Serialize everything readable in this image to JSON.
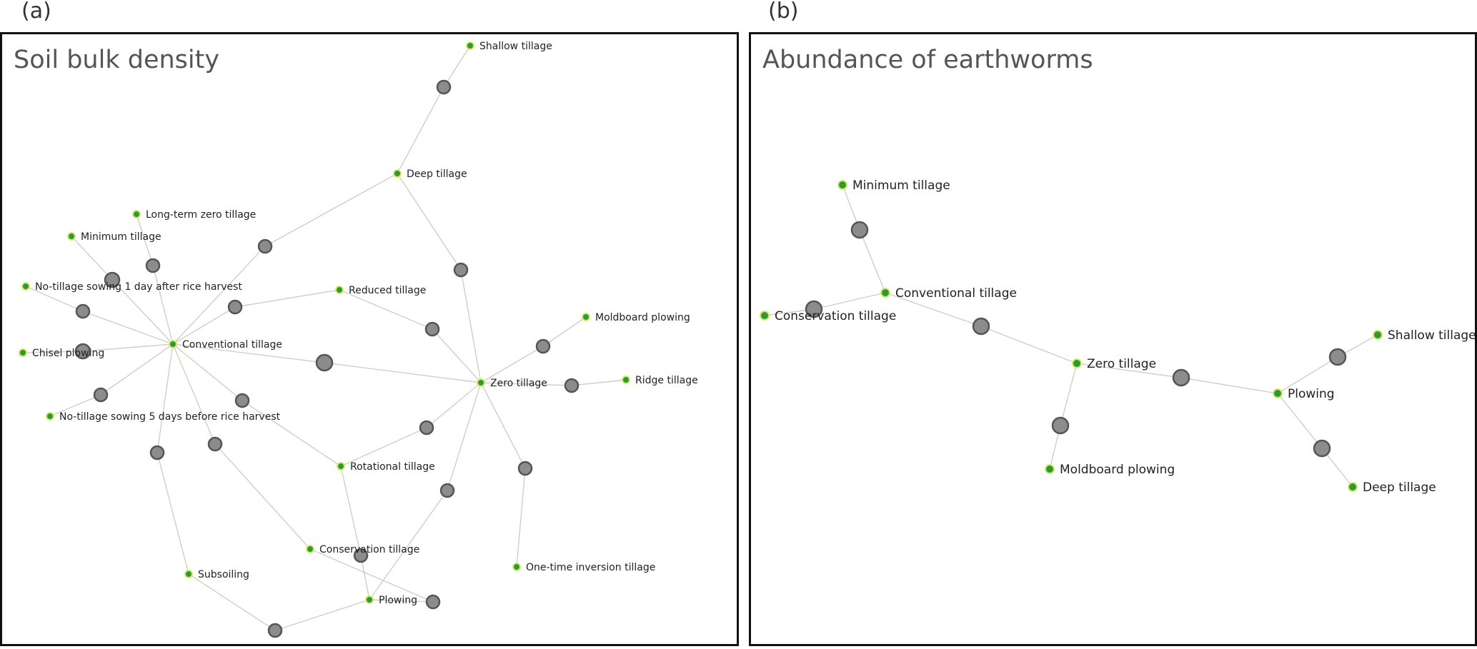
{
  "colors": {
    "edge": "#d0cfc6",
    "treatment_fill": "#2e9a35",
    "treatment_ring": "#d7e86a",
    "comparison_fill": "#8c8c8c",
    "comparison_stroke": "#555555"
  },
  "panels": [
    {
      "letter": "(a)",
      "title": "Soil bulk density",
      "nodes": [
        {
          "id": "shallow",
          "label": "Shallow tillage"
        },
        {
          "id": "deep",
          "label": "Deep tillage"
        },
        {
          "id": "longterm",
          "label": "Long-term zero tillage"
        },
        {
          "id": "minimum",
          "label": "Minimum tillage"
        },
        {
          "id": "nts1",
          "label": "No-tillage sowing 1 day after rice harvest"
        },
        {
          "id": "reduced",
          "label": "Reduced tillage"
        },
        {
          "id": "moldboard",
          "label": "Moldboard plowing"
        },
        {
          "id": "conventional",
          "label": "Conventional tillage"
        },
        {
          "id": "chisel",
          "label": "Chisel plowing"
        },
        {
          "id": "zero",
          "label": "Zero tillage"
        },
        {
          "id": "ridge",
          "label": "Ridge tillage"
        },
        {
          "id": "nts5",
          "label": "No-tillage sowing 5 days before rice harvest"
        },
        {
          "id": "rotational",
          "label": "Rotational tillage"
        },
        {
          "id": "conservation",
          "label": "Conservation tillage"
        },
        {
          "id": "onetime",
          "label": "One-time inversion tillage"
        },
        {
          "id": "subsoiling",
          "label": "Subsoiling"
        },
        {
          "id": "plowing",
          "label": "Plowing"
        }
      ],
      "comparisons": [
        [
          "shallow",
          "deep"
        ],
        [
          "deep",
          "conventional"
        ],
        [
          "deep",
          "zero"
        ],
        [
          "longterm",
          "conventional"
        ],
        [
          "minimum",
          "conventional"
        ],
        [
          "nts1",
          "conventional"
        ],
        [
          "reduced",
          "conventional"
        ],
        [
          "reduced",
          "zero"
        ],
        [
          "moldboard",
          "zero"
        ],
        [
          "chisel",
          "conventional"
        ],
        [
          "conventional",
          "zero"
        ],
        [
          "zero",
          "ridge"
        ],
        [
          "nts5",
          "conventional"
        ],
        [
          "conventional",
          "rotational"
        ],
        [
          "rotational",
          "zero"
        ],
        [
          "conventional",
          "conservation"
        ],
        [
          "conventional",
          "subsoiling"
        ],
        [
          "zero",
          "plowing"
        ],
        [
          "zero",
          "onetime"
        ],
        [
          "rotational",
          "plowing"
        ],
        [
          "subsoiling",
          "plowing"
        ],
        [
          "conservation",
          "plowing"
        ]
      ]
    },
    {
      "letter": "(b)",
      "title": "Abundance of earthworms",
      "nodes": [
        {
          "id": "minimum",
          "label": "Minimum tillage"
        },
        {
          "id": "conventional",
          "label": "Conventional tillage"
        },
        {
          "id": "conservation",
          "label": "Conservation tillage"
        },
        {
          "id": "zero",
          "label": "Zero tillage"
        },
        {
          "id": "moldboard",
          "label": "Moldboard plowing"
        },
        {
          "id": "plowing",
          "label": "Plowing"
        },
        {
          "id": "shallow",
          "label": "Shallow tillage"
        },
        {
          "id": "deep",
          "label": "Deep tillage"
        }
      ],
      "comparisons": [
        [
          "minimum",
          "conventional"
        ],
        [
          "conventional",
          "conservation"
        ],
        [
          "conventional",
          "zero"
        ],
        [
          "zero",
          "moldboard"
        ],
        [
          "zero",
          "plowing"
        ],
        [
          "plowing",
          "shallow"
        ],
        [
          "plowing",
          "deep"
        ]
      ]
    }
  ]
}
